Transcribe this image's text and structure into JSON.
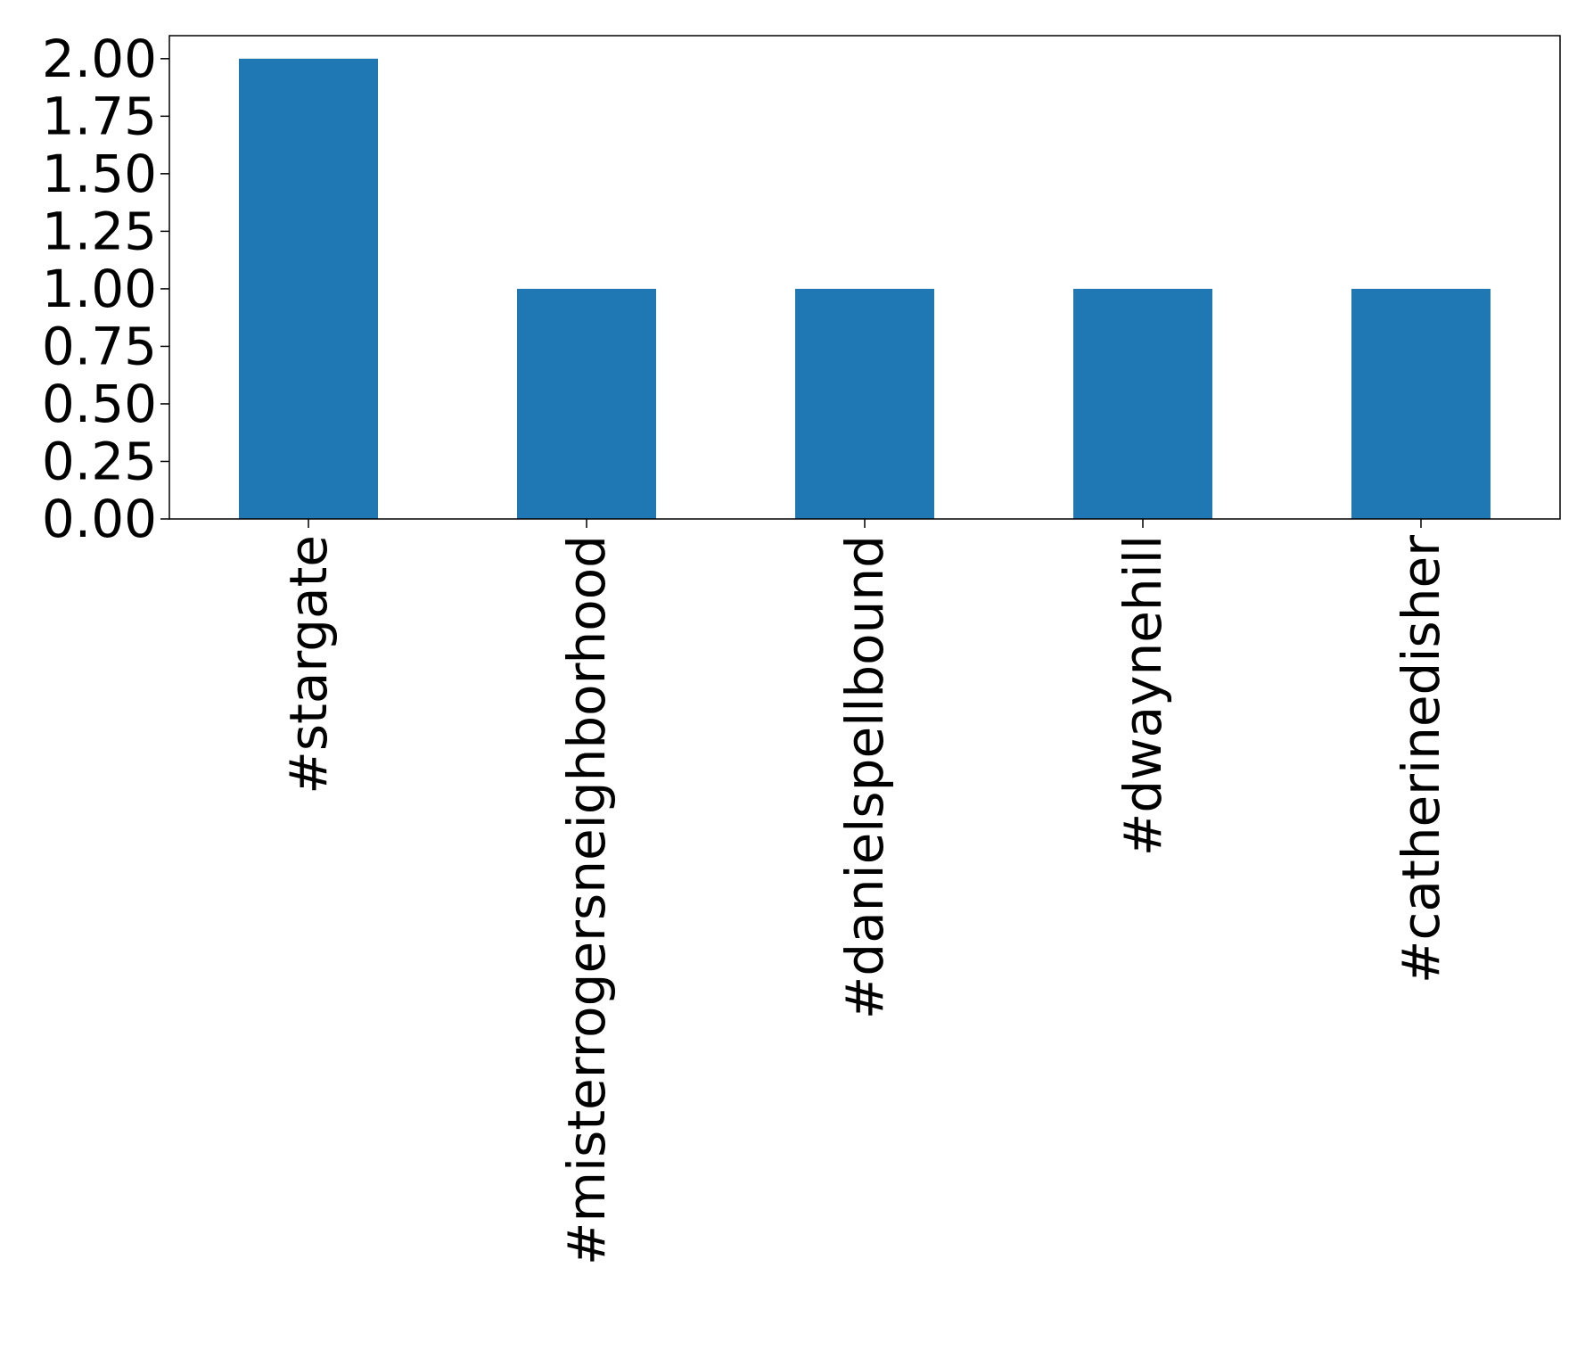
{
  "chart_data": {
    "type": "bar",
    "title": "",
    "xlabel": "",
    "ylabel": "",
    "categories": [
      "#stargate",
      "#misterrogersneighborhood",
      "#danielspellbound",
      "#dwaynehill",
      "#catherinedisher"
    ],
    "values": [
      2,
      1,
      1,
      1,
      1
    ],
    "ylim": [
      0,
      2.1
    ],
    "yticks": [
      0,
      0.25,
      0.5,
      0.75,
      1.0,
      1.25,
      1.5,
      1.75,
      2.0
    ],
    "ytick_labels": [
      "0.00",
      "0.25",
      "0.50",
      "0.75",
      "1.00",
      "1.25",
      "1.50",
      "1.75",
      "2.00"
    ],
    "bar_color": "#1f77b4",
    "grid": false,
    "legend": "none"
  }
}
